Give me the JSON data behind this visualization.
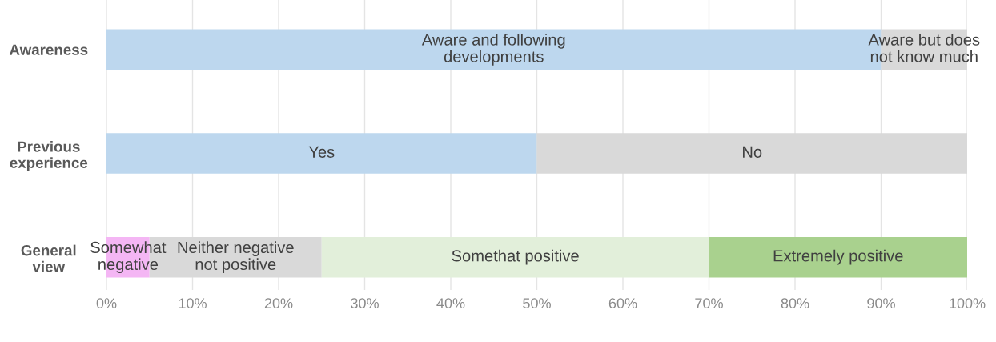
{
  "chart_data": {
    "type": "bar",
    "orientation": "horizontal",
    "stacked": true,
    "categories": [
      "Awareness",
      "Previous\nexperience",
      "General\nview"
    ],
    "series": [
      {
        "name": "Aware and following\ndevelopments",
        "color": "#bdd7ee",
        "values": [
          90,
          null,
          null
        ]
      },
      {
        "name": "Aware but does\nnot know much",
        "color": "#d9d9d9",
        "values": [
          10,
          null,
          null
        ]
      },
      {
        "name": "Yes",
        "color": "#bdd7ee",
        "values": [
          null,
          50,
          null
        ]
      },
      {
        "name": "No",
        "color": "#d9d9d9",
        "values": [
          null,
          50,
          null
        ]
      },
      {
        "name": "Somewhat\nnegative",
        "color": "#f4b6f4",
        "values": [
          null,
          null,
          5
        ]
      },
      {
        "name": "Neither negative\nnot positive",
        "color": "#d9d9d9",
        "values": [
          null,
          null,
          20
        ]
      },
      {
        "name": "Somethat positive",
        "color": "#e2efda",
        "values": [
          null,
          null,
          45
        ]
      },
      {
        "name": "Extremely positive",
        "color": "#a9d18e",
        "values": [
          null,
          null,
          30
        ]
      }
    ],
    "xlim": [
      0,
      100
    ],
    "xticks": [
      {
        "value": 0,
        "label": "0%"
      },
      {
        "value": 10,
        "label": "10%"
      },
      {
        "value": 20,
        "label": "20%"
      },
      {
        "value": 30,
        "label": "30%"
      },
      {
        "value": 40,
        "label": "40%"
      },
      {
        "value": 50,
        "label": "50%"
      },
      {
        "value": 60,
        "label": "60%"
      },
      {
        "value": 70,
        "label": "70%"
      },
      {
        "value": 80,
        "label": "80%"
      },
      {
        "value": 90,
        "label": "90%"
      },
      {
        "value": 100,
        "label": "100%"
      }
    ],
    "grid": "x"
  }
}
